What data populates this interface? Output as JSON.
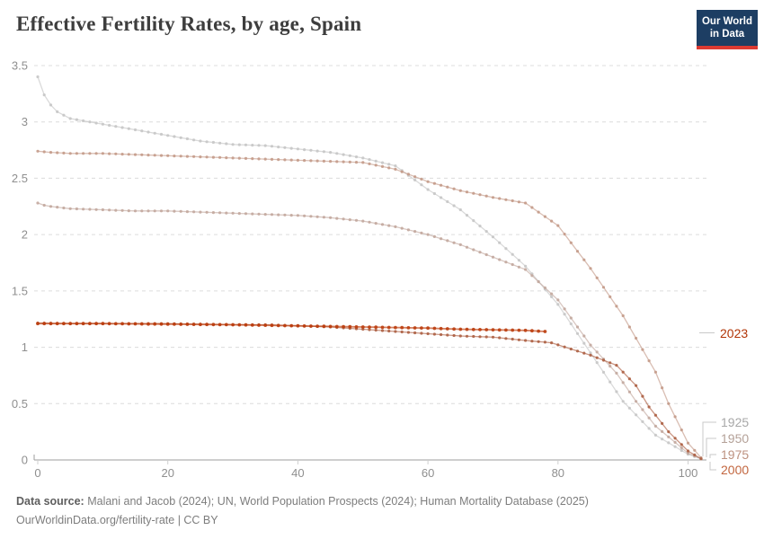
{
  "header": {
    "title": "Effective Fertility Rates, by age, Spain",
    "logo": {
      "line1": "Our World",
      "line2": "in Data"
    }
  },
  "footer": {
    "source_label": "Data source:",
    "source_text": " Malani and Jacob (2024); UN, World Population Prospects (2024); Human Mortality Database (2025)",
    "license_text": "OurWorldinData.org/fertility-rate | CC BY"
  },
  "colors": {
    "background": "#ffffff",
    "title_text": "#3d3d3d",
    "axis_line": "#9c9c9c",
    "grid_line": "#dcdcdc",
    "tick_text": "#8f8f8f",
    "connector": "#c9c9c9",
    "logo_navy": "#1d3e63",
    "logo_red": "#dc3a32",
    "footer_text": "#7d7d7d"
  },
  "chart_data": {
    "type": "line",
    "title": "Effective Fertility Rates, by age, Spain",
    "xlabel": "",
    "ylabel": "",
    "xlim": [
      0,
      102
    ],
    "ylim": [
      0,
      3.5
    ],
    "x_ticks": [
      0,
      20,
      40,
      60,
      80,
      100
    ],
    "y_ticks": [
      0,
      0.5,
      1,
      1.5,
      2,
      2.5,
      3,
      3.5
    ],
    "grid": "horizontal dashed",
    "legend_position": "right-edge series end labels",
    "marker_style": "small dots at yearly ages",
    "series": [
      {
        "name": "1925",
        "color": "#c6c6c6",
        "label_color": "#a8a8a8",
        "points": [
          [
            0,
            3.4
          ],
          [
            1,
            3.24
          ],
          [
            2,
            3.15
          ],
          [
            3,
            3.09
          ],
          [
            5,
            3.03
          ],
          [
            8,
            3.0
          ],
          [
            10,
            2.98
          ],
          [
            15,
            2.93
          ],
          [
            20,
            2.88
          ],
          [
            25,
            2.83
          ],
          [
            30,
            2.8
          ],
          [
            35,
            2.79
          ],
          [
            40,
            2.76
          ],
          [
            45,
            2.73
          ],
          [
            50,
            2.68
          ],
          [
            55,
            2.61
          ],
          [
            60,
            2.4
          ],
          [
            65,
            2.22
          ],
          [
            70,
            1.98
          ],
          [
            75,
            1.72
          ],
          [
            80,
            1.38
          ],
          [
            85,
            0.95
          ],
          [
            90,
            0.52
          ],
          [
            95,
            0.22
          ],
          [
            100,
            0.05
          ],
          [
            102,
            0.01
          ]
        ]
      },
      {
        "name": "1950",
        "color": "#c3a99f",
        "label_color": "#b4a198",
        "points": [
          [
            0,
            2.28
          ],
          [
            1,
            2.26
          ],
          [
            2,
            2.25
          ],
          [
            5,
            2.23
          ],
          [
            10,
            2.22
          ],
          [
            15,
            2.21
          ],
          [
            20,
            2.21
          ],
          [
            25,
            2.2
          ],
          [
            30,
            2.19
          ],
          [
            35,
            2.18
          ],
          [
            40,
            2.17
          ],
          [
            45,
            2.15
          ],
          [
            50,
            2.12
          ],
          [
            55,
            2.07
          ],
          [
            60,
            2.0
          ],
          [
            65,
            1.91
          ],
          [
            70,
            1.8
          ],
          [
            75,
            1.69
          ],
          [
            80,
            1.42
          ],
          [
            85,
            1.02
          ],
          [
            89,
            0.77
          ],
          [
            92,
            0.52
          ],
          [
            95,
            0.3
          ],
          [
            100,
            0.06
          ],
          [
            102,
            0.01
          ]
        ]
      },
      {
        "name": "1975",
        "color": "#c49b8a",
        "label_color": "#bd9280",
        "points": [
          [
            0,
            2.74
          ],
          [
            2,
            2.73
          ],
          [
            5,
            2.72
          ],
          [
            10,
            2.72
          ],
          [
            15,
            2.71
          ],
          [
            20,
            2.7
          ],
          [
            25,
            2.69
          ],
          [
            30,
            2.68
          ],
          [
            35,
            2.67
          ],
          [
            40,
            2.66
          ],
          [
            45,
            2.65
          ],
          [
            50,
            2.64
          ],
          [
            55,
            2.58
          ],
          [
            60,
            2.47
          ],
          [
            65,
            2.39
          ],
          [
            70,
            2.33
          ],
          [
            75,
            2.28
          ],
          [
            80,
            2.08
          ],
          [
            85,
            1.7
          ],
          [
            90,
            1.28
          ],
          [
            95,
            0.78
          ],
          [
            97,
            0.5
          ],
          [
            100,
            0.15
          ],
          [
            102,
            0.02
          ]
        ]
      },
      {
        "name": "2000",
        "color": "#ad6044",
        "label_color": "#c2663f",
        "points": [
          [
            0,
            1.215
          ],
          [
            5,
            1.21
          ],
          [
            10,
            1.21
          ],
          [
            15,
            1.21
          ],
          [
            20,
            1.21
          ],
          [
            25,
            1.205
          ],
          [
            30,
            1.2
          ],
          [
            35,
            1.2
          ],
          [
            40,
            1.19
          ],
          [
            45,
            1.18
          ],
          [
            50,
            1.16
          ],
          [
            55,
            1.14
          ],
          [
            60,
            1.12
          ],
          [
            65,
            1.1
          ],
          [
            70,
            1.09
          ],
          [
            75,
            1.06
          ],
          [
            79,
            1.04
          ],
          [
            85,
            0.93
          ],
          [
            89,
            0.84
          ],
          [
            92,
            0.66
          ],
          [
            94,
            0.47
          ],
          [
            97,
            0.25
          ],
          [
            100,
            0.08
          ],
          [
            102,
            0.01
          ]
        ]
      },
      {
        "name": "2023",
        "color": "#bb3d0e",
        "label_color": "#b13507",
        "focused": true,
        "points": [
          [
            0,
            1.21
          ],
          [
            10,
            1.21
          ],
          [
            20,
            1.205
          ],
          [
            30,
            1.2
          ],
          [
            40,
            1.19
          ],
          [
            50,
            1.18
          ],
          [
            55,
            1.175
          ],
          [
            60,
            1.17
          ],
          [
            65,
            1.16
          ],
          [
            70,
            1.155
          ],
          [
            75,
            1.15
          ],
          [
            78,
            1.14
          ]
        ]
      }
    ]
  }
}
